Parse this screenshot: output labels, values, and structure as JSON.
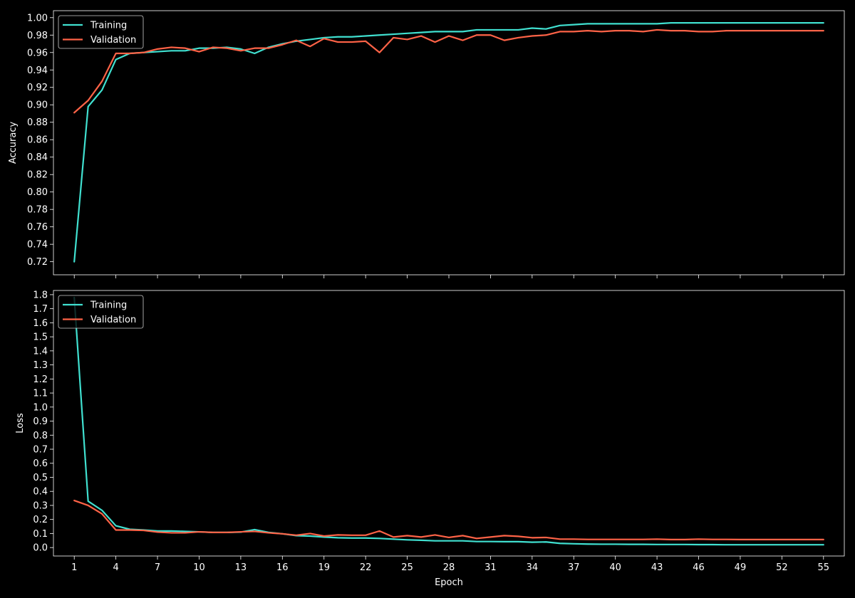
{
  "chart_data": [
    {
      "type": "line",
      "ylabel": "Accuracy",
      "xlabel": "",
      "ylim": [
        0.705,
        1.008
      ],
      "yticks": [
        "0.72",
        "0.74",
        "0.76",
        "0.78",
        "0.80",
        "0.82",
        "0.84",
        "0.86",
        "0.88",
        "0.90",
        "0.92",
        "0.94",
        "0.96",
        "0.98",
        "1.00"
      ],
      "xlim": [
        -0.5,
        56.5
      ],
      "show_xtick_labels": false,
      "legend_position": "upper-left",
      "series": [
        {
          "name": "Training",
          "color": "#40e0d0",
          "values": [
            0.72,
            0.898,
            0.917,
            0.952,
            0.959,
            0.96,
            0.961,
            0.962,
            0.962,
            0.965,
            0.965,
            0.966,
            0.964,
            0.959,
            0.966,
            0.97,
            0.973,
            0.975,
            0.977,
            0.978,
            0.978,
            0.979,
            0.98,
            0.981,
            0.982,
            0.983,
            0.984,
            0.984,
            0.984,
            0.986,
            0.986,
            0.986,
            0.986,
            0.988,
            0.987,
            0.991,
            0.992,
            0.993,
            0.993,
            0.993,
            0.993,
            0.993,
            0.993,
            0.994,
            0.994,
            0.994,
            0.994,
            0.994,
            0.994,
            0.994,
            0.994,
            0.994,
            0.994,
            0.994,
            0.994
          ]
        },
        {
          "name": "Validation",
          "color": "#ff6347",
          "values": [
            0.891,
            0.905,
            0.927,
            0.959,
            0.959,
            0.96,
            0.964,
            0.966,
            0.965,
            0.961,
            0.966,
            0.965,
            0.962,
            0.965,
            0.965,
            0.969,
            0.974,
            0.967,
            0.976,
            0.972,
            0.972,
            0.973,
            0.96,
            0.977,
            0.975,
            0.979,
            0.972,
            0.979,
            0.974,
            0.98,
            0.98,
            0.974,
            0.977,
            0.979,
            0.98,
            0.984,
            0.984,
            0.985,
            0.984,
            0.985,
            0.985,
            0.984,
            0.986,
            0.985,
            0.985,
            0.984,
            0.984,
            0.985,
            0.985,
            0.985,
            0.985,
            0.985,
            0.985,
            0.985,
            0.985
          ]
        }
      ]
    },
    {
      "type": "line",
      "ylabel": "Loss",
      "xlabel": "Epoch",
      "ylim": [
        -0.06,
        1.83
      ],
      "yticks": [
        "0.0",
        "0.1",
        "0.2",
        "0.3",
        "0.4",
        "0.5",
        "0.6",
        "0.7",
        "0.8",
        "0.9",
        "1.0",
        "1.1",
        "1.2",
        "1.3",
        "1.4",
        "1.5",
        "1.6",
        "1.7",
        "1.8"
      ],
      "xlim": [
        -0.5,
        56.5
      ],
      "xticks": [
        1,
        4,
        7,
        10,
        13,
        16,
        19,
        22,
        25,
        28,
        31,
        34,
        37,
        40,
        43,
        46,
        49,
        52,
        55
      ],
      "xtick_labels": [
        "1",
        "4",
        "7",
        "10",
        "13",
        "16",
        "19",
        "22",
        "25",
        "28",
        "31",
        "34",
        "37",
        "40",
        "43",
        "46",
        "49",
        "52",
        "55"
      ],
      "show_xtick_labels": true,
      "legend_position": "upper-left",
      "series": [
        {
          "name": "Training",
          "color": "#40e0d0",
          "values": [
            1.78,
            0.33,
            0.265,
            0.155,
            0.13,
            0.125,
            0.118,
            0.118,
            0.115,
            0.112,
            0.108,
            0.108,
            0.11,
            0.128,
            0.108,
            0.098,
            0.085,
            0.082,
            0.075,
            0.07,
            0.068,
            0.068,
            0.065,
            0.06,
            0.055,
            0.052,
            0.048,
            0.048,
            0.048,
            0.043,
            0.043,
            0.042,
            0.042,
            0.038,
            0.04,
            0.03,
            0.027,
            0.025,
            0.024,
            0.024,
            0.023,
            0.023,
            0.022,
            0.022,
            0.022,
            0.021,
            0.021,
            0.02,
            0.02,
            0.02,
            0.02,
            0.02,
            0.02,
            0.02,
            0.02
          ]
        },
        {
          "name": "Validation",
          "color": "#ff6347",
          "values": [
            0.335,
            0.3,
            0.24,
            0.125,
            0.125,
            0.122,
            0.11,
            0.105,
            0.105,
            0.112,
            0.108,
            0.108,
            0.112,
            0.115,
            0.105,
            0.098,
            0.088,
            0.1,
            0.082,
            0.09,
            0.088,
            0.088,
            0.118,
            0.075,
            0.085,
            0.075,
            0.09,
            0.072,
            0.085,
            0.065,
            0.075,
            0.085,
            0.08,
            0.07,
            0.072,
            0.06,
            0.06,
            0.058,
            0.058,
            0.058,
            0.058,
            0.058,
            0.06,
            0.057,
            0.057,
            0.06,
            0.058,
            0.058,
            0.057,
            0.057,
            0.057,
            0.057,
            0.057,
            0.057,
            0.057
          ]
        }
      ]
    }
  ]
}
